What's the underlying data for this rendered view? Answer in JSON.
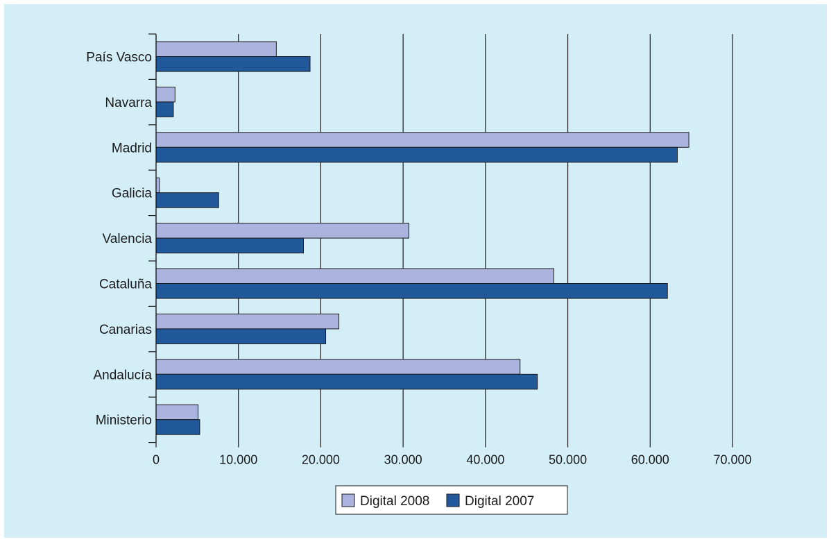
{
  "chart_data": {
    "type": "bar",
    "orientation": "horizontal",
    "categories": [
      "País Vasco",
      "Navarra",
      "Madrid",
      "Galicia",
      "Valencia",
      "Cataluña",
      "Canarias",
      "Andalucía",
      "Ministerio"
    ],
    "series": [
      {
        "name": "Digital 2008",
        "color": "#aab4de",
        "values": [
          14600,
          2300,
          64700,
          400,
          30700,
          48300,
          22200,
          44200,
          5100
        ]
      },
      {
        "name": "Digital 2007",
        "color": "#21589a",
        "values": [
          18700,
          2100,
          63300,
          7600,
          17900,
          62100,
          20600,
          46300,
          5300
        ]
      }
    ],
    "x_ticks": [
      "0",
      "10.000",
      "20.000",
      "30.000",
      "40.000",
      "50.000",
      "60.000",
      "70.000"
    ],
    "xlim": [
      0,
      70000
    ],
    "grid": "vertical",
    "legend_position": "bottom-center"
  }
}
